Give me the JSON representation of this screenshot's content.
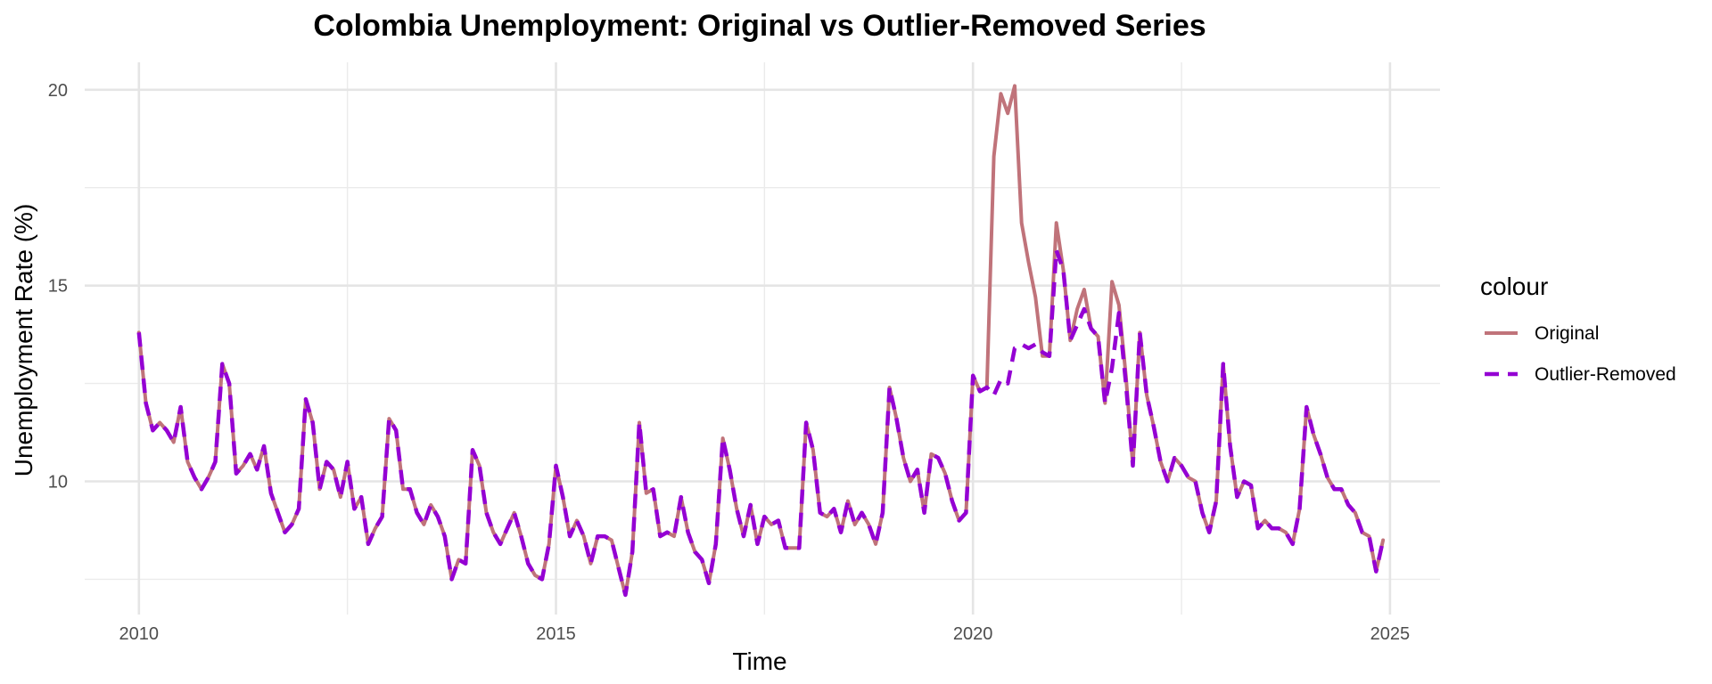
{
  "chart_data": {
    "type": "line",
    "title": "Colombia Unemployment: Original vs Outlier-Removed Series",
    "xlabel": "Time",
    "ylabel": "Unemployment Rate (%)",
    "xlim": [
      2009.35,
      2025.6
    ],
    "ylim": [
      6.6,
      20.7
    ],
    "x_ticks": [
      2010,
      2015,
      2020,
      2025
    ],
    "x_tick_labels": [
      "2010",
      "2015",
      "2020",
      "2025"
    ],
    "y_ticks": [
      10,
      15,
      20
    ],
    "y_tick_labels": [
      "10",
      "15",
      "20"
    ],
    "grid": true,
    "legend": {
      "title": "colour",
      "position": "right"
    },
    "x": {
      "start": "2010-01",
      "frequency": "monthly",
      "count": 181
    },
    "series": [
      {
        "name": "Original",
        "color": "#c0737a",
        "style": "solid",
        "values": [
          13.8,
          12.0,
          11.3,
          11.5,
          11.3,
          11.0,
          11.9,
          10.5,
          10.1,
          9.8,
          10.1,
          10.5,
          13.0,
          12.5,
          10.2,
          10.4,
          10.7,
          10.3,
          10.9,
          9.7,
          9.2,
          8.7,
          8.9,
          9.3,
          12.1,
          11.5,
          9.8,
          10.5,
          10.3,
          9.6,
          10.5,
          9.3,
          9.6,
          8.4,
          8.8,
          9.1,
          11.6,
          11.3,
          9.8,
          9.8,
          9.2,
          8.9,
          9.4,
          9.1,
          8.6,
          7.5,
          8.0,
          7.9,
          10.8,
          10.4,
          9.2,
          8.7,
          8.4,
          8.8,
          9.2,
          8.6,
          7.9,
          7.6,
          7.5,
          8.4,
          10.4,
          9.6,
          8.6,
          9.0,
          8.6,
          7.9,
          8.6,
          8.6,
          8.5,
          7.8,
          7.1,
          8.2,
          11.5,
          9.7,
          9.8,
          8.6,
          8.7,
          8.6,
          9.6,
          8.7,
          8.2,
          8.0,
          7.4,
          8.4,
          11.1,
          10.3,
          9.3,
          8.6,
          9.4,
          8.4,
          9.1,
          8.9,
          9.0,
          8.3,
          8.3,
          8.3,
          11.5,
          10.8,
          9.2,
          9.1,
          9.3,
          8.7,
          9.5,
          8.9,
          9.2,
          8.9,
          8.4,
          9.2,
          12.4,
          11.6,
          10.6,
          10.0,
          10.3,
          9.2,
          10.7,
          10.6,
          10.2,
          9.5,
          9.0,
          9.2,
          12.7,
          12.3,
          12.4,
          18.3,
          19.9,
          19.4,
          20.1,
          16.6,
          15.6,
          14.7,
          13.2,
          13.2,
          16.6,
          15.4,
          13.6,
          14.4,
          14.9,
          13.9,
          13.7,
          12.0,
          15.1,
          14.5,
          12.7,
          10.4,
          13.8,
          12.2,
          11.4,
          10.5,
          10.0,
          10.6,
          10.4,
          10.1,
          10.0,
          9.2,
          8.7,
          9.5,
          13.0,
          10.9,
          9.6,
          10.0,
          9.9,
          8.8,
          9.0,
          8.8,
          8.8,
          8.7,
          8.4,
          9.3,
          11.9,
          11.2,
          10.7,
          10.1,
          9.8,
          9.8,
          9.4,
          9.2,
          8.7,
          8.6,
          7.7,
          8.5
        ]
      },
      {
        "name": "Outlier-Removed",
        "color": "#9400d3",
        "style": "dashed",
        "values": [
          13.8,
          12.0,
          11.3,
          11.5,
          11.3,
          11.0,
          11.9,
          10.5,
          10.1,
          9.8,
          10.1,
          10.5,
          13.0,
          12.5,
          10.2,
          10.4,
          10.7,
          10.3,
          10.9,
          9.7,
          9.2,
          8.7,
          8.9,
          9.3,
          12.1,
          11.5,
          9.8,
          10.5,
          10.3,
          9.6,
          10.5,
          9.3,
          9.6,
          8.4,
          8.8,
          9.1,
          11.6,
          11.3,
          9.8,
          9.8,
          9.2,
          8.9,
          9.4,
          9.1,
          8.6,
          7.5,
          8.0,
          7.9,
          10.8,
          10.4,
          9.2,
          8.7,
          8.4,
          8.8,
          9.2,
          8.6,
          7.9,
          7.6,
          7.5,
          8.4,
          10.4,
          9.6,
          8.6,
          9.0,
          8.6,
          7.9,
          8.6,
          8.6,
          8.5,
          7.8,
          7.1,
          8.2,
          11.5,
          9.7,
          9.8,
          8.6,
          8.7,
          8.6,
          9.6,
          8.7,
          8.2,
          8.0,
          7.4,
          8.4,
          11.1,
          10.3,
          9.3,
          8.6,
          9.4,
          8.4,
          9.1,
          8.9,
          9.0,
          8.3,
          8.3,
          8.3,
          11.5,
          10.8,
          9.2,
          9.1,
          9.3,
          8.7,
          9.5,
          8.9,
          9.2,
          8.9,
          8.4,
          9.2,
          12.4,
          11.6,
          10.6,
          10.0,
          10.3,
          9.2,
          10.7,
          10.6,
          10.2,
          9.5,
          9.0,
          9.2,
          12.7,
          12.3,
          12.4,
          12.2,
          12.6,
          12.5,
          13.4,
          13.5,
          13.4,
          13.5,
          13.3,
          13.2,
          15.9,
          15.4,
          13.6,
          14.0,
          14.4,
          13.9,
          13.7,
          12.0,
          12.9,
          14.3,
          12.5,
          10.4,
          13.8,
          12.2,
          11.4,
          10.5,
          10.0,
          10.6,
          10.4,
          10.1,
          10.0,
          9.2,
          8.7,
          9.5,
          13.0,
          10.9,
          9.6,
          10.0,
          9.9,
          8.8,
          9.0,
          8.8,
          8.8,
          8.7,
          8.4,
          9.3,
          11.9,
          11.2,
          10.7,
          10.1,
          9.8,
          9.8,
          9.4,
          9.2,
          8.7,
          8.6,
          7.7,
          8.5
        ]
      }
    ]
  }
}
